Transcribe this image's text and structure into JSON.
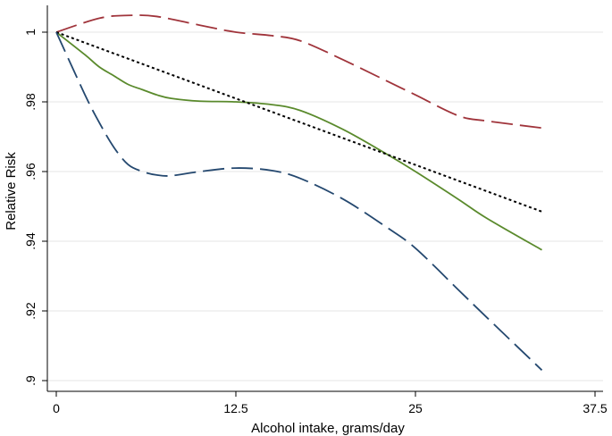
{
  "chart_data": {
    "type": "line",
    "xlabel": "Alcohol intake, grams/day",
    "ylabel": "Relative Risk",
    "xlim": [
      0,
      37.5
    ],
    "ylim": [
      0.9,
      1.0
    ],
    "xticks": [
      {
        "value": 0,
        "label": "0"
      },
      {
        "value": 12.5,
        "label": "12.5"
      },
      {
        "value": 25,
        "label": "25"
      },
      {
        "value": 37.5,
        "label": "37.5"
      }
    ],
    "yticks": [
      {
        "value": 0.9,
        "label": ".9"
      },
      {
        "value": 0.92,
        "label": ".92"
      },
      {
        "value": 0.94,
        "label": ".94"
      },
      {
        "value": 0.96,
        "label": ".96"
      },
      {
        "value": 0.98,
        "label": ".98"
      },
      {
        "value": 1.0,
        "label": "1"
      }
    ],
    "grid": true,
    "legend": "none",
    "series": [
      {
        "style": "long-dash",
        "color": "#a0343b",
        "x": [
          0,
          3,
          5,
          7,
          10,
          12.5,
          15,
          17,
          20,
          23,
          25,
          28,
          30,
          33.8
        ],
        "y": [
          1.0,
          1.004,
          1.0048,
          1.0045,
          1.002,
          1.0,
          0.999,
          0.9975,
          0.992,
          0.986,
          0.982,
          0.976,
          0.9745,
          0.9725
        ]
      },
      {
        "style": "solid",
        "color": "#5a8a2c",
        "x": [
          0,
          2,
          3,
          4,
          5,
          6,
          7,
          8,
          10,
          12.5,
          15,
          17,
          20,
          23,
          25,
          28,
          30,
          33.8
        ],
        "y": [
          1.0,
          0.9935,
          0.99,
          0.9875,
          0.985,
          0.9835,
          0.982,
          0.981,
          0.9802,
          0.98,
          0.9792,
          0.9775,
          0.972,
          0.965,
          0.96,
          0.952,
          0.9465,
          0.9375
        ]
      },
      {
        "style": "dotted",
        "color": "#000000",
        "x": [
          0,
          33.8
        ],
        "y": [
          1.0,
          0.9485
        ]
      },
      {
        "style": "long-dash",
        "color": "#24486f",
        "x": [
          0,
          2,
          3,
          4,
          5,
          6,
          7,
          8,
          10,
          12.5,
          15,
          17,
          20,
          23,
          25,
          28,
          30,
          33.8
        ],
        "y": [
          1.0,
          0.982,
          0.974,
          0.967,
          0.962,
          0.96,
          0.959,
          0.9588,
          0.96,
          0.961,
          0.9603,
          0.958,
          0.952,
          0.944,
          0.938,
          0.926,
          0.918,
          0.903
        ]
      }
    ]
  }
}
